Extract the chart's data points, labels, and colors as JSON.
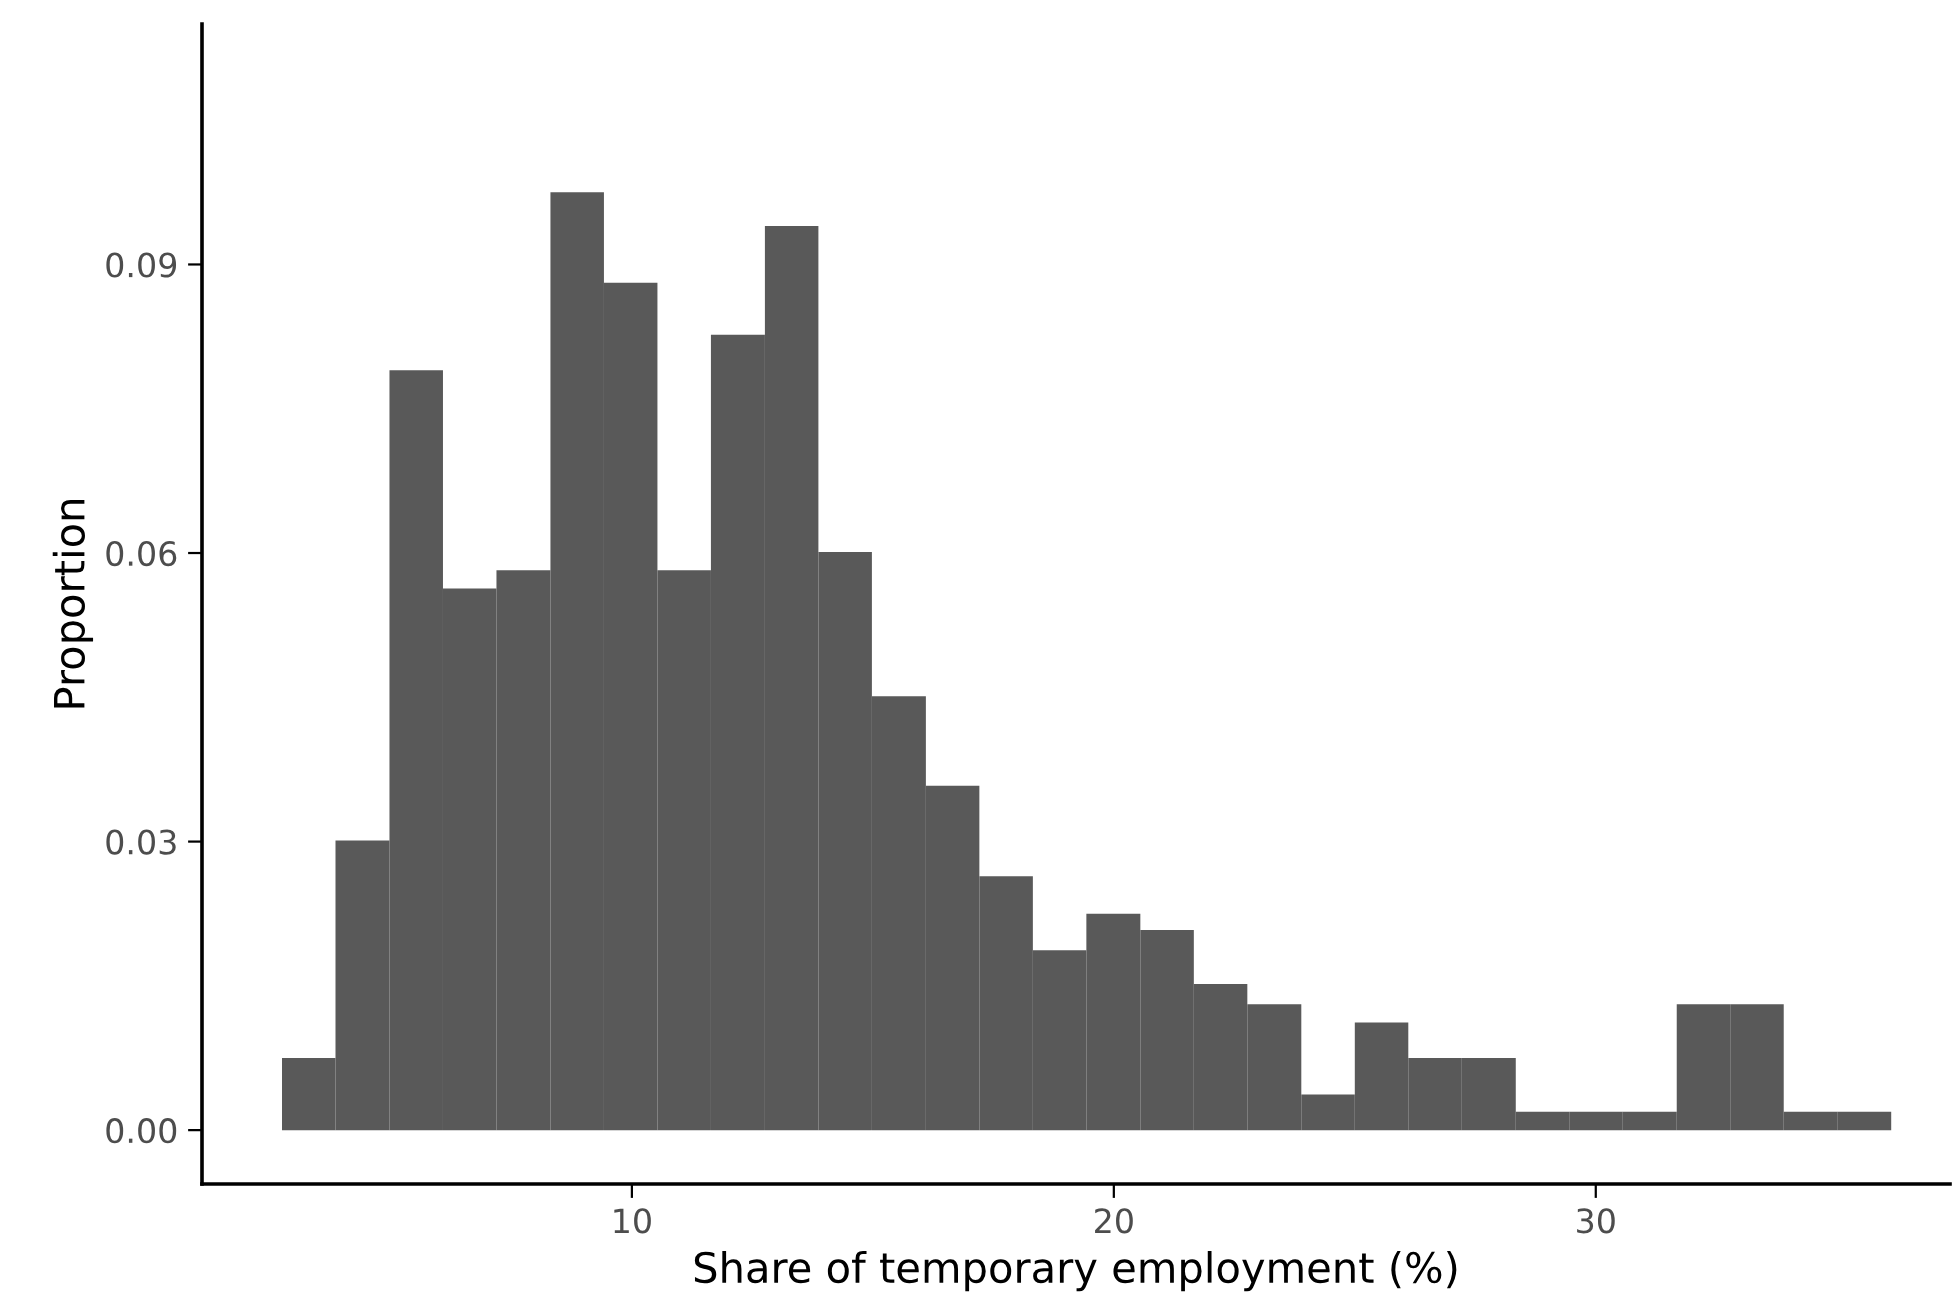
{
  "chart_data": {
    "type": "histogram",
    "xlabel": "Share of temporary employment (%)",
    "ylabel": "Proportion",
    "bins": [
      2.74,
      3.85,
      4.97,
      6.08,
      7.19,
      8.31,
      9.42,
      10.53,
      11.64,
      12.76,
      13.87,
      14.98,
      16.1,
      17.21,
      18.32,
      19.43,
      20.55,
      21.66,
      22.77,
      23.89,
      25.0,
      26.11,
      27.22,
      28.34,
      29.45,
      30.56,
      31.68,
      32.79,
      33.9,
      35.01,
      36.13
    ],
    "values": [
      0.0075,
      0.0301,
      0.079,
      0.0563,
      0.0582,
      0.0975,
      0.0881,
      0.0582,
      0.0827,
      0.094,
      0.0601,
      0.0451,
      0.0358,
      0.0264,
      0.0187,
      0.0225,
      0.0208,
      0.0152,
      0.0131,
      0.0037,
      0.0112,
      0.0075,
      0.0075,
      0.0019,
      0.0019,
      0.0019,
      0.0131,
      0.0131,
      0.0019,
      0.0019
    ],
    "color": "#595959",
    "xlim": [
      1.08,
      37.35
    ],
    "ylim": [
      -0.0056,
      0.115
    ],
    "xticks": [
      10,
      20,
      30
    ],
    "yticks": [
      {
        "value": 0,
        "label": "0.00"
      },
      {
        "value": 0.03,
        "label": "0.03"
      },
      {
        "value": 0.06,
        "label": "0.06"
      },
      {
        "value": 0.09,
        "label": "0.09"
      }
    ],
    "grid": false
  }
}
